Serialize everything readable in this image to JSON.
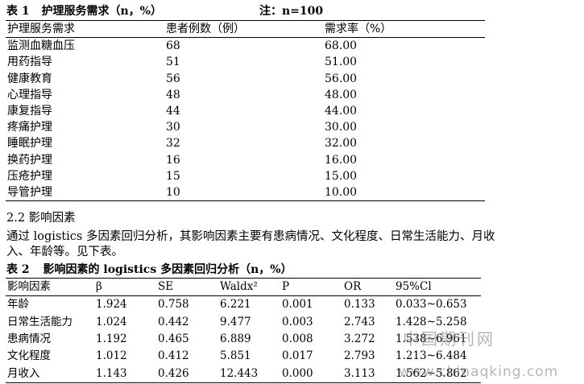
{
  "table1": {
    "caption_label": "表 1",
    "caption_title": "护理服务需求（n，%）",
    "note": "注：n=100",
    "headers": [
      "护理服务需求",
      "患者例数（例）",
      "需求率（%）"
    ],
    "rows": [
      [
        "监测血糖血压",
        "68",
        "68.00"
      ],
      [
        "用药指导",
        "51",
        "51.00"
      ],
      [
        "健康教育",
        "56",
        "56.00"
      ],
      [
        "心理指导",
        "48",
        "48.00"
      ],
      [
        "康复指导",
        "44",
        "44.00"
      ],
      [
        "疼痛护理",
        "30",
        "30.00"
      ],
      [
        "睡眠护理",
        "32",
        "32.00"
      ],
      [
        "换药护理",
        "16",
        "16.00"
      ],
      [
        "压疮护理",
        "15",
        "15.00"
      ],
      [
        "导管护理",
        "10",
        "10.00"
      ]
    ]
  },
  "section": {
    "heading": "2.2 影响因素",
    "paragraph_line1": "通过 logistics 多因素回归分析，其影响因素主要有患病情况、文化程度、日常生活能力、月收",
    "paragraph_line2": "入、年龄等。见下表。"
  },
  "table2": {
    "caption_label": "表 2",
    "caption_title": "影响因素的 logistics 多因素回归分析（n，%）",
    "headers": [
      "影响因素",
      "β",
      "SE",
      "Waldx²",
      "P",
      "OR",
      "95%Cl"
    ],
    "rows": [
      [
        "年龄",
        "1.924",
        "0.758",
        "6.221",
        "0.001",
        "0.133",
        "0.033~0.653"
      ],
      [
        "日常生活能力",
        "1.024",
        "0.442",
        "9.477",
        "0.003",
        "2.743",
        "1.428~5.258"
      ],
      [
        "患病情况",
        "1.192",
        "0.465",
        "6.889",
        "0.008",
        "3.272",
        "1.538~6.961"
      ],
      [
        "文化程度",
        "1.012",
        "0.412",
        "5.851",
        "0.017",
        "2.793",
        "1.213~6.484"
      ],
      [
        "月收入",
        "1.143",
        "0.426",
        "12.443",
        "0.000",
        "3.113",
        "1.562~5.862"
      ]
    ]
  },
  "watermark": {
    "line1": "中国期刊网",
    "line2": "www.chinaqking.com"
  }
}
